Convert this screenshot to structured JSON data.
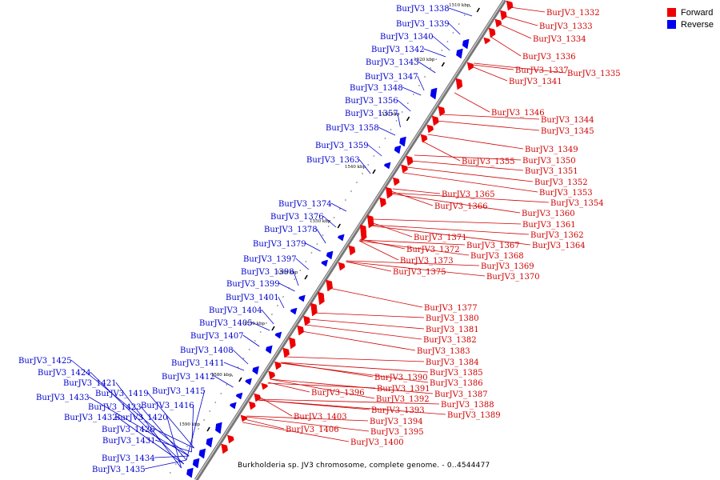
{
  "colors": {
    "forward": "#ee0000",
    "reverse": "#0000ee",
    "backbone": "#777777",
    "label_forward": "#d00000",
    "label_reverse": "#0000cc"
  },
  "legend": [
    {
      "label": "Forward",
      "color": "#ee0000"
    },
    {
      "label": "Reverse",
      "color": "#0000ee"
    }
  ],
  "caption": "Burkholderia sp. JV3 chromosome, complete genome. - 0..4544477",
  "scale_marks": [
    "1510 kbp",
    "1520 kbp",
    "1530 kbp",
    "1540 kbp",
    "1550 kbp",
    "1560 kbp",
    "1570 kbp",
    "1580 kbp",
    "1590 kbp"
  ],
  "forward_labels": [
    "BurJV3_1332",
    "BurJV3_1333",
    "BurJV3_1334",
    "BurJV3_1336",
    "BurJV3_1337",
    "BurJV3_1335",
    "BurJV3_1341",
    "BurJV3_1346",
    "BurJV3_1344",
    "BurJV3_1345",
    "BurJV3_1349",
    "BurJV3_1355",
    "BurJV3_1350",
    "BurJV3_1351",
    "BurJV3_1352",
    "BurJV3_1353",
    "BurJV3_1365",
    "BurJV3_1354",
    "BurJV3_1366",
    "BurJV3_1360",
    "BurJV3_1361",
    "BurJV3_1362",
    "BurJV3_1371",
    "BurJV3_1364",
    "BurJV3_1367",
    "BurJV3_1372",
    "BurJV3_1368",
    "BurJV3_1373",
    "BurJV3_1369",
    "BurJV3_1375",
    "BurJV3_1370",
    "BurJV3_1377",
    "BurJV3_1380",
    "BurJV3_1381",
    "BurJV3_1382",
    "BurJV3_1383",
    "BurJV3_1384",
    "BurJV3_1385",
    "BurJV3_1390",
    "BurJV3_1386",
    "BurJV3_1391",
    "BurJV3_1396",
    "BurJV3_1387",
    "BurJV3_1392",
    "BurJV3_1388",
    "BurJV3_1393",
    "BurJV3_1389",
    "BurJV3_1403",
    "BurJV3_1394",
    "BurJV3_1406",
    "BurJV3_1395",
    "BurJV3_1400"
  ],
  "reverse_labels": [
    "BurJV3_1338",
    "BurJV3_1339",
    "BurJV3_1340",
    "BurJV3_1342",
    "BurJV3_1343",
    "BurJV3_1347",
    "BurJV3_1348",
    "BurJV3_1356",
    "BurJV3_1357",
    "BurJV3_1358",
    "BurJV3_1359",
    "BurJV3_1363",
    "BurJV3_1374",
    "BurJV3_1376",
    "BurJV3_1378",
    "BurJV3_1379",
    "BurJV3_1397",
    "BurJV3_1398",
    "BurJV3_1399",
    "BurJV3_1401",
    "BurJV3_1404",
    "BurJV3_1405",
    "BurJV3_1407",
    "BurJV3_1408",
    "BurJV3_1411",
    "BurJV3_1412",
    "BurJV3_1425",
    "BurJV3_1415",
    "BurJV3_1424",
    "BurJV3_1421",
    "BurJV3_1419",
    "BurJV3_1416",
    "BurJV3_1433",
    "BurJV3_1423",
    "BurJV3_1432",
    "BurJV3_1420",
    "BurJV3_1426",
    "BurJV3_1431",
    "BurJV3_1434",
    "BurJV3_1435"
  ]
}
